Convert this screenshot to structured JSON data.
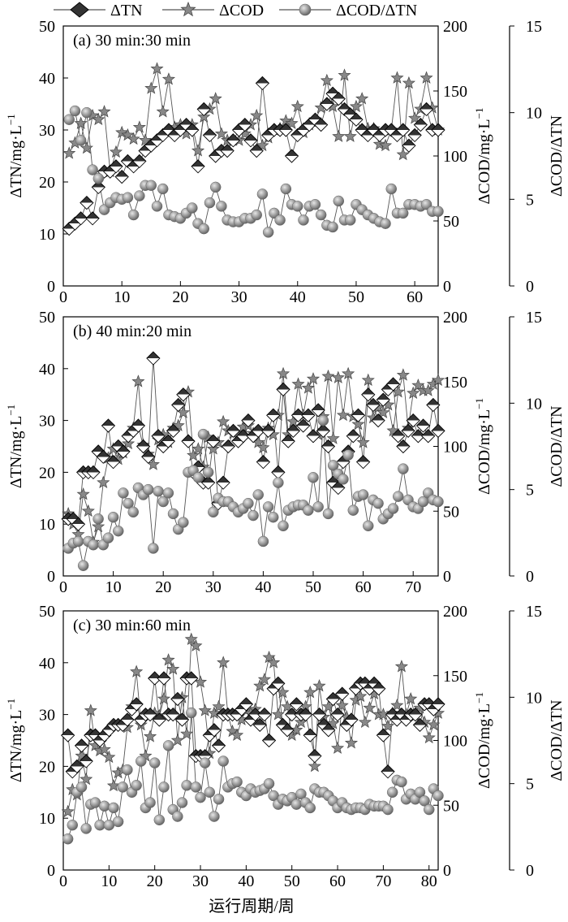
{
  "legend": {
    "entries": [
      "ΔTN",
      "ΔCOD",
      "ΔCOD/ΔTN"
    ],
    "placement": "top"
  },
  "axes": {
    "y_left_label": "ΔTN/mg·L",
    "y_left_sup": "−1",
    "y_right_label": "ΔCOD/mg·L",
    "y_right_sup": "−1",
    "y_far_right_label": "ΔCOD/ΔTN",
    "x_label": "运行周期/周"
  },
  "style": {
    "tn_fill_top": "#333333",
    "tn_fill_bottom": "#ffffff",
    "cod_marker": "#888888",
    "ratio_marker": "#8f8f8f",
    "line_color": "#555555"
  },
  "chart_data": [
    {
      "type": "line",
      "title": "(a) 30 min:30 min",
      "x": [
        1,
        2,
        3,
        4,
        5,
        6,
        7,
        8,
        9,
        10,
        11,
        12,
        13,
        14,
        15,
        16,
        17,
        18,
        19,
        20,
        21,
        22,
        23,
        24,
        25,
        26,
        27,
        28,
        29,
        30,
        31,
        32,
        33,
        34,
        35,
        36,
        37,
        38,
        39,
        40,
        41,
        42,
        43,
        44,
        45,
        46,
        47,
        48,
        49,
        50,
        51,
        52,
        53,
        54,
        55,
        56,
        57,
        58,
        59,
        60,
        61,
        62,
        63,
        64
      ],
      "xlim": [
        0,
        64
      ],
      "xticks": [
        0,
        10,
        20,
        30,
        40,
        50,
        60
      ],
      "y_left": {
        "lim": [
          0,
          50
        ],
        "ticks": [
          0,
          10,
          20,
          30,
          40,
          50
        ]
      },
      "y_right": {
        "lim": [
          0,
          200
        ],
        "ticks": [
          0,
          50,
          100,
          150,
          200
        ]
      },
      "y_far_right": {
        "lim": [
          0,
          15
        ],
        "ticks": [
          0,
          5,
          10,
          15
        ]
      },
      "series": [
        {
          "name": "ΔTN",
          "axis": "left",
          "values": [
            11,
            12,
            13,
            16,
            13,
            19,
            22,
            22,
            23,
            21,
            24,
            23,
            24,
            26,
            27,
            28,
            29,
            30,
            29,
            30,
            31,
            30,
            23,
            34,
            29,
            25,
            26,
            26,
            28,
            30,
            31,
            28,
            26,
            39,
            29,
            30,
            30,
            30,
            25,
            29,
            30,
            31,
            32,
            31,
            35,
            37,
            36,
            34,
            33,
            32,
            30,
            29,
            30,
            29,
            30,
            30,
            29,
            30,
            27,
            29,
            31,
            34,
            30,
            30
          ]
        },
        {
          "name": "ΔCOD",
          "axis": "right",
          "values": [
            102,
            110,
            125,
            106,
            131,
            128,
            134,
            88,
            103,
            118,
            116,
            113,
            122,
            112,
            152,
            167,
            134,
            159,
            122,
            124,
            117,
            124,
            104,
            130,
            136,
            144,
            117,
            112,
            112,
            112,
            117,
            124,
            131,
            108,
            114,
            120,
            121,
            127,
            125,
            138,
            118,
            124,
            128,
            137,
            158,
            138,
            115,
            162,
            115,
            138,
            144,
            121,
            121,
            109,
            108,
            120,
            160,
            101,
            156,
            129,
            136,
            160,
            137,
            120
          ]
        },
        {
          "name": "ΔCOD/ΔTN",
          "axis": "far-right",
          "values": [
            9.6,
            10.1,
            8.4,
            10.0,
            6.7,
            6.2,
            4.4,
            4.8,
            5.1,
            5.0,
            5.1,
            4.1,
            5.2,
            5.8,
            5.8,
            4.6,
            5.6,
            4.1,
            4.0,
            3.9,
            4.2,
            4.5,
            3.6,
            3.3,
            4.8,
            5.7,
            4.6,
            3.8,
            3.7,
            3.7,
            3.9,
            3.9,
            4.1,
            5.3,
            3.1,
            4.2,
            3.8,
            5.6,
            4.7,
            4.6,
            3.8,
            4.6,
            4.7,
            4.1,
            3.5,
            3.4,
            4.9,
            3.8,
            3.8,
            4.7,
            4.4,
            4.1,
            3.9,
            3.7,
            3.6,
            5.6,
            4.2,
            4.2,
            4.7,
            4.7,
            4.6,
            4.7,
            4.3,
            4.3
          ]
        }
      ]
    },
    {
      "type": "line",
      "title": "(b) 40 min:20 min",
      "x": [
        1,
        2,
        3,
        4,
        5,
        6,
        7,
        8,
        9,
        10,
        11,
        12,
        13,
        14,
        15,
        16,
        17,
        18,
        19,
        20,
        21,
        22,
        23,
        24,
        25,
        26,
        27,
        28,
        29,
        30,
        31,
        32,
        33,
        34,
        35,
        36,
        37,
        38,
        39,
        40,
        41,
        42,
        43,
        44,
        45,
        46,
        47,
        48,
        49,
        50,
        51,
        52,
        53,
        54,
        55,
        56,
        57,
        58,
        59,
        60,
        61,
        62,
        63,
        64,
        65,
        66,
        67,
        68,
        69,
        70,
        71,
        72,
        73,
        74,
        75
      ],
      "xlim": [
        0,
        75
      ],
      "xticks": [
        0,
        10,
        20,
        30,
        40,
        50,
        60,
        70
      ],
      "y_left": {
        "lim": [
          0,
          50
        ],
        "ticks": [
          0,
          10,
          20,
          30,
          40,
          50
        ]
      },
      "y_right": {
        "lim": [
          0,
          200
        ],
        "ticks": [
          0,
          50,
          100,
          150,
          200
        ]
      },
      "y_far_right": {
        "lim": [
          0,
          15
        ],
        "ticks": [
          0,
          5,
          10,
          15
        ]
      },
      "series": [
        {
          "name": "ΔTN",
          "axis": "left",
          "values": [
            11,
            11,
            10,
            20,
            20,
            20,
            24,
            23,
            29,
            22,
            25,
            24,
            27,
            28,
            29,
            25,
            23,
            42,
            27,
            25,
            26,
            28,
            33,
            35,
            26,
            20,
            21,
            18,
            18,
            26,
            14,
            18,
            25,
            28,
            26,
            27,
            30,
            27,
            28,
            22,
            28,
            31,
            20,
            36,
            26,
            28,
            31,
            29,
            31,
            27,
            32,
            28,
            25,
            18,
            17,
            22,
            24,
            27,
            31,
            22,
            35,
            33,
            30,
            34,
            36,
            37,
            27,
            25,
            28,
            30,
            27,
            29,
            27,
            33,
            28
          ]
        },
        {
          "name": "ΔCOD",
          "axis": "right",
          "values": [
            48,
            40,
            32,
            63,
            50,
            26,
            38,
            72,
            91,
            98,
            90,
            95,
            102,
            114,
            150,
            101,
            94,
            86,
            105,
            109,
            103,
            114,
            116,
            126,
            142,
            93,
            98,
            84,
            107,
            98,
            103,
            119,
            112,
            110,
            108,
            115,
            116,
            110,
            103,
            99,
            114,
            109,
            124,
            156,
            109,
            119,
            148,
            124,
            145,
            152,
            109,
            123,
            154,
            106,
            153,
            124,
            156,
            123,
            117,
            103,
            151,
            122,
            130,
            126,
            132,
            112,
            142,
            155,
            114,
            141,
            147,
            143,
            143,
            148,
            151
          ]
        },
        {
          "name": "ΔCOD/ΔTN",
          "axis": "far-right",
          "values": [
            1.6,
            1.9,
            2.0,
            0.6,
            2.0,
            1.8,
            3.3,
            1.8,
            2.2,
            3.4,
            2.6,
            4.8,
            4.2,
            3.7,
            5.1,
            4.7,
            5.0,
            1.6,
            4.9,
            4.3,
            4.8,
            3.6,
            2.7,
            3.1,
            6.0,
            6.1,
            5.7,
            8.2,
            6.0,
            3.7,
            4.5,
            4.3,
            4.3,
            4.0,
            3.7,
            3.9,
            4.2,
            3.5,
            4.7,
            2.0,
            4.0,
            3.4,
            5.4,
            2.9,
            3.8,
            4.0,
            4.1,
            4.1,
            3.8,
            5.7,
            4.0,
            9.0,
            3.6,
            6.4,
            5.9,
            5.6,
            7.0,
            3.8,
            4.6,
            4.7,
            2.9,
            4.4,
            4.2,
            3.3,
            3.6,
            3.9,
            4.6,
            6.2,
            4.4,
            4.0,
            3.9,
            4.3,
            4.8,
            4.4,
            4.3
          ]
        }
      ]
    },
    {
      "type": "line",
      "title": "(c) 30 min:60 min",
      "x": [
        1,
        2,
        3,
        4,
        5,
        6,
        7,
        8,
        9,
        10,
        11,
        12,
        13,
        14,
        15,
        16,
        17,
        18,
        19,
        20,
        21,
        22,
        23,
        24,
        25,
        26,
        27,
        28,
        29,
        30,
        31,
        32,
        33,
        34,
        35,
        36,
        37,
        38,
        39,
        40,
        41,
        42,
        43,
        44,
        45,
        46,
        47,
        48,
        49,
        50,
        51,
        52,
        53,
        54,
        55,
        56,
        57,
        58,
        59,
        60,
        61,
        62,
        63,
        64,
        65,
        66,
        67,
        68,
        69,
        70,
        71,
        72,
        73,
        74,
        75,
        76,
        77,
        78,
        79,
        80,
        81,
        82
      ],
      "xlim": [
        0,
        82
      ],
      "xticks": [
        0,
        10,
        20,
        30,
        40,
        50,
        60,
        70,
        80
      ],
      "y_left": {
        "lim": [
          0,
          50
        ],
        "ticks": [
          0,
          10,
          20,
          30,
          40,
          50
        ]
      },
      "y_right": {
        "lim": [
          0,
          200
        ],
        "ticks": [
          0,
          50,
          100,
          150,
          200
        ]
      },
      "y_far_right": {
        "lim": [
          0,
          15
        ],
        "ticks": [
          0,
          5,
          10,
          15
        ]
      },
      "series": [
        {
          "name": "ΔTN",
          "axis": "left",
          "values": [
            26,
            19,
            20,
            24,
            21,
            26,
            26,
            25,
            26,
            27,
            28,
            28,
            28,
            29,
            31,
            32,
            29,
            30,
            30,
            37,
            29,
            37,
            30,
            30,
            33,
            29,
            37,
            37,
            22,
            22,
            22,
            26,
            27,
            24,
            30,
            30,
            30,
            30,
            31,
            32,
            29,
            30,
            28,
            30,
            25,
            35,
            36,
            28,
            27,
            30,
            32,
            30,
            30,
            26,
            22,
            30,
            28,
            27,
            33,
            30,
            34,
            28,
            29,
            35,
            36,
            36,
            35,
            36,
            35,
            26,
            19,
            30,
            29,
            30,
            29,
            30,
            30,
            28,
            32,
            32,
            31,
            32
          ]
        },
        {
          "name": "ΔCOD",
          "axis": "right",
          "values": [
            45,
            62,
            58,
            88,
            70,
            123,
            96,
            92,
            93,
            87,
            65,
            75,
            77,
            110,
            126,
            153,
            112,
            88,
            103,
            121,
            119,
            132,
            162,
            155,
            100,
            133,
            105,
            178,
            173,
            145,
            123,
            90,
            121,
            126,
            160,
            120,
            107,
            104,
            116,
            123,
            121,
            124,
            142,
            147,
            164,
            160,
            120,
            137,
            126,
            104,
            108,
            114,
            126,
            137,
            80,
            142,
            118,
            126,
            113,
            94,
            127,
            118,
            98,
            131,
            134,
            114,
            125,
            136,
            120,
            120,
            111,
            121,
            127,
            157,
            120,
            132,
            119,
            125,
            114,
            102,
            112,
            121
          ]
        },
        {
          "name": "ΔCOD/ΔTN",
          "axis": "far-right",
          "values": [
            1.8,
            2.6,
            4.5,
            4.8,
            2.4,
            3.8,
            3.9,
            2.6,
            3.7,
            2.6,
            3.6,
            2.8,
            4.8,
            5.8,
            4.5,
            4.9,
            6.3,
            3.6,
            3.9,
            6.2,
            2.9,
            4.8,
            7.2,
            3.5,
            3.1,
            3.9,
            4.9,
            9.1,
            4.8,
            4.2,
            6.2,
            4.5,
            3.1,
            4.1,
            6.3,
            4.8,
            5.0,
            5.1,
            4.5,
            4.3,
            4.7,
            4.5,
            4.6,
            4.7,
            5.0,
            4.3,
            3.8,
            4.1,
            4.0,
            4.2,
            3.8,
            4.4,
            3.9,
            3.6,
            4.7,
            4.5,
            4.5,
            4.3,
            4.0,
            3.6,
            3.9,
            3.6,
            3.5,
            3.6,
            3.6,
            3.5,
            3.8,
            3.7,
            3.7,
            3.7,
            3.5,
            4.5,
            5.2,
            5.1,
            4.1,
            4.4,
            4.1,
            4.5,
            4.0,
            3.5,
            4.7,
            4.3
          ]
        }
      ]
    }
  ]
}
